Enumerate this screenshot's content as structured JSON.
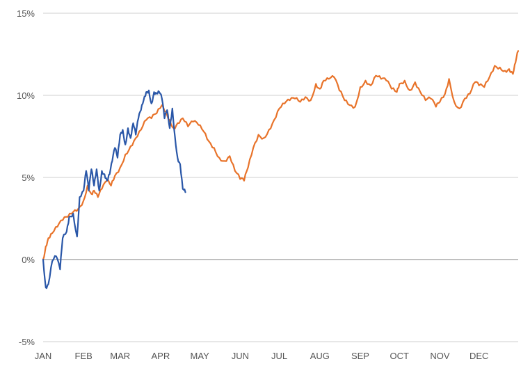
{
  "chart_data": {
    "type": "line",
    "title": "",
    "xlabel": "",
    "ylabel": "",
    "ylim": [
      -5,
      15
    ],
    "xlim": [
      1,
      365
    ],
    "grid": true,
    "legend": "none",
    "y_ticks": [
      {
        "value": 15,
        "label": "15%"
      },
      {
        "value": 10,
        "label": "10%"
      },
      {
        "value": 5,
        "label": "5%"
      },
      {
        "value": 0,
        "label": "0%"
      },
      {
        "value": -5,
        "label": "-5%"
      }
    ],
    "x_ticks": [
      {
        "value": 1,
        "label": "JAN"
      },
      {
        "value": 32,
        "label": "FEB"
      },
      {
        "value": 60,
        "label": "MAR"
      },
      {
        "value": 91,
        "label": "APR"
      },
      {
        "value": 121,
        "label": "MAY"
      },
      {
        "value": 152,
        "label": "JUN"
      },
      {
        "value": 182,
        "label": "JUL"
      },
      {
        "value": 213,
        "label": "AUG"
      },
      {
        "value": 244,
        "label": "SEP"
      },
      {
        "value": 274,
        "label": "OCT"
      },
      {
        "value": 305,
        "label": "NOV"
      },
      {
        "value": 335,
        "label": "DEC"
      }
    ],
    "series": [
      {
        "color": "#e8732a",
        "x": [
          1,
          3,
          5,
          8,
          12,
          16,
          20,
          24,
          28,
          32,
          35,
          38,
          40,
          43,
          46,
          50,
          53,
          56,
          60,
          64,
          68,
          72,
          76,
          80,
          84,
          88,
          92,
          95,
          98,
          101,
          104,
          108,
          112,
          116,
          120,
          124,
          128,
          132,
          136,
          140,
          144,
          148,
          152,
          155,
          158,
          162,
          166,
          170,
          174,
          178,
          182,
          186,
          190,
          194,
          198,
          202,
          206,
          210,
          213,
          216,
          220,
          224,
          228,
          232,
          236,
          240,
          244,
          248,
          252,
          256,
          260,
          264,
          268,
          272,
          274,
          278,
          282,
          286,
          290,
          294,
          298,
          302,
          305,
          309,
          312,
          316,
          320,
          324,
          328,
          332,
          335,
          339,
          343,
          347,
          351,
          355,
          358,
          361,
          363,
          365
        ],
        "y": [
          0.0,
          0.8,
          1.3,
          1.6,
          2.0,
          2.4,
          2.6,
          2.9,
          3.1,
          3.6,
          4.5,
          4.0,
          4.2,
          3.8,
          4.3,
          4.8,
          4.5,
          5.1,
          5.6,
          6.4,
          6.9,
          7.4,
          7.9,
          8.5,
          8.6,
          8.9,
          9.4,
          9.0,
          8.5,
          8.0,
          8.3,
          8.6,
          8.1,
          8.4,
          8.2,
          7.8,
          7.2,
          6.8,
          6.2,
          6.0,
          6.3,
          5.4,
          4.9,
          4.8,
          5.6,
          6.8,
          7.6,
          7.4,
          7.9,
          8.5,
          9.2,
          9.5,
          9.7,
          9.8,
          9.6,
          9.9,
          9.7,
          10.7,
          10.4,
          10.9,
          11.0,
          11.1,
          10.3,
          9.7,
          9.4,
          9.3,
          10.5,
          10.9,
          10.6,
          11.2,
          11.0,
          10.9,
          10.4,
          10.2,
          10.7,
          10.9,
          10.3,
          10.8,
          10.2,
          9.7,
          9.8,
          9.3,
          9.6,
          10.1,
          11.0,
          9.6,
          9.2,
          9.8,
          10.1,
          10.8,
          10.6,
          10.5,
          11.1,
          11.8,
          11.7,
          11.5,
          11.6,
          11.3,
          12.0,
          12.7
        ]
      },
      {
        "color": "#2a57a8",
        "x": [
          1,
          3,
          5,
          8,
          11,
          14,
          16,
          19,
          21,
          24,
          27,
          29,
          32,
          34,
          36,
          38,
          40,
          42,
          44,
          46,
          48,
          50,
          52,
          54,
          56,
          58,
          60,
          62,
          64,
          66,
          68,
          70,
          72,
          74,
          76,
          78,
          80,
          82,
          84,
          86,
          88,
          90,
          92,
          94,
          96,
          98,
          100,
          102,
          104,
          106,
          108,
          110
        ],
        "y": [
          0.0,
          -1.7,
          -1.5,
          -0.1,
          0.2,
          -0.6,
          1.3,
          1.7,
          2.6,
          2.8,
          1.4,
          3.8,
          4.2,
          5.4,
          4.2,
          5.5,
          4.5,
          5.5,
          4.2,
          5.4,
          5.2,
          4.8,
          5.2,
          6.0,
          6.8,
          6.2,
          7.6,
          7.9,
          7.0,
          8.0,
          7.4,
          8.3,
          7.6,
          8.6,
          9.1,
          9.7,
          10.2,
          10.3,
          9.5,
          10.2,
          10.1,
          10.2,
          9.8,
          8.6,
          9.1,
          8.0,
          9.2,
          7.5,
          6.2,
          5.8,
          4.3,
          4.1
        ]
      }
    ]
  }
}
